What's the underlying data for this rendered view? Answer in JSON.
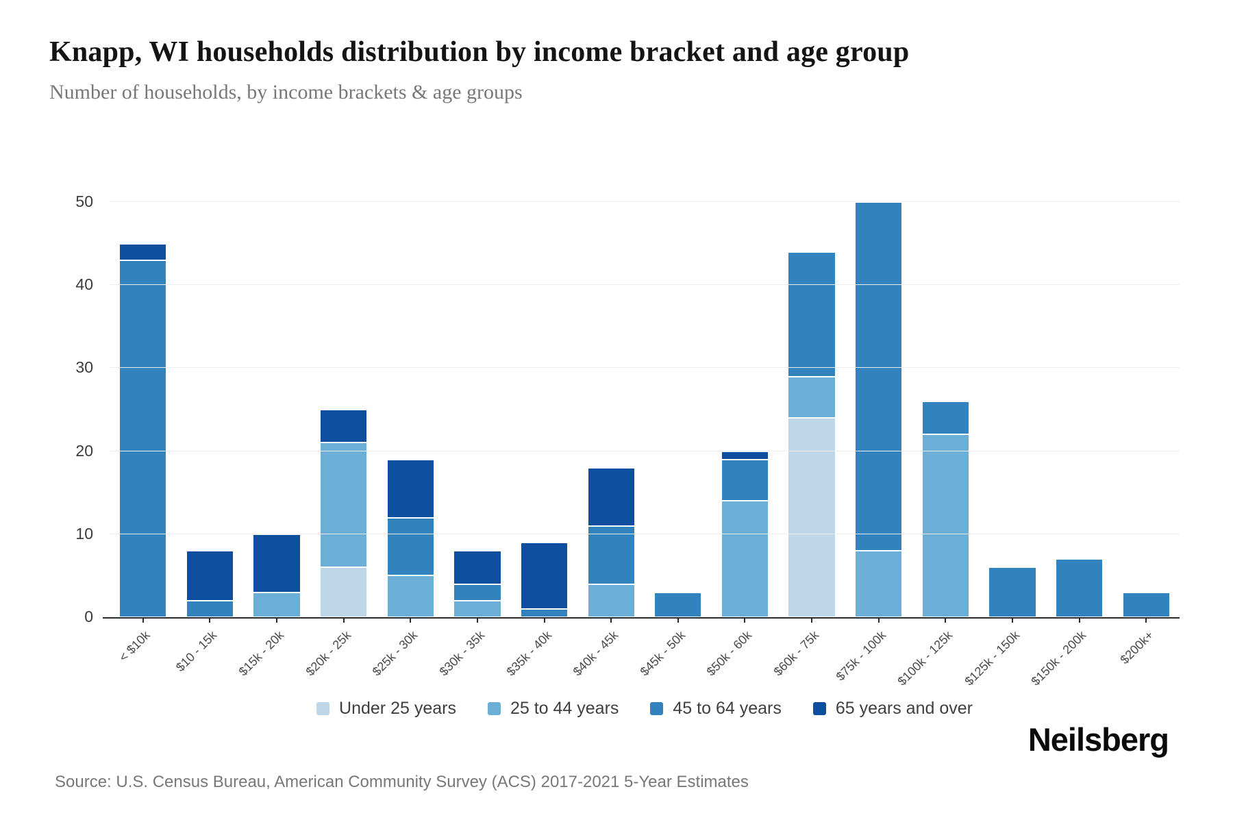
{
  "header": {
    "title": "Knapp, WI households distribution by income bracket and age group",
    "subtitle": "Number of households, by income brackets & age groups"
  },
  "chart_data": {
    "type": "bar",
    "stacked": true,
    "categories": [
      "< $10k",
      "$10 - 15k",
      "$15k - 20k",
      "$20k - 25k",
      "$25k - 30k",
      "$30k - 35k",
      "$35k - 40k",
      "$40k - 45k",
      "$45k - 50k",
      "$50k - 60k",
      "$60k - 75k",
      "$75k - 100k",
      "$100k - 125k",
      "$125k - 150k",
      "$150k - 200k",
      "$200k+"
    ],
    "series": [
      {
        "name": "Under 25 years",
        "color": "#bdd7e8",
        "values": [
          0,
          0,
          0,
          6,
          0,
          0,
          0,
          0,
          0,
          0,
          24,
          0,
          0,
          0,
          0,
          0
        ]
      },
      {
        "name": "25 to 44 years",
        "color": "#6baed6",
        "values": [
          0,
          0,
          3,
          15,
          5,
          2,
          0,
          4,
          0,
          14,
          5,
          8,
          22,
          0,
          0,
          0
        ]
      },
      {
        "name": "45 to 64 years",
        "color": "#3282bd",
        "values": [
          43,
          2,
          0,
          0,
          7,
          2,
          1,
          7,
          3,
          5,
          15,
          42,
          4,
          6,
          7,
          3
        ]
      },
      {
        "name": "65 years and over",
        "color": "#0d4f9e",
        "values": [
          2,
          6,
          7,
          4,
          7,
          4,
          8,
          7,
          0,
          1,
          0,
          0,
          0,
          0,
          0,
          0
        ]
      }
    ],
    "totals": [
      45,
      8,
      10,
      25,
      19,
      8,
      9,
      18,
      3,
      20,
      44,
      50,
      26,
      6,
      7,
      3
    ],
    "title": "Knapp, WI households distribution by income bracket and age group",
    "xlabel": "",
    "ylabel": "",
    "ylim": [
      0,
      50
    ],
    "yticks": [
      0,
      10,
      20,
      30,
      40,
      50
    ],
    "grid": true,
    "legend_position": "bottom"
  },
  "footer": {
    "source": "Source: U.S. Census Bureau, American Community Survey (ACS) 2017-2021 5-Year Estimates",
    "brand": "Neilsberg"
  }
}
